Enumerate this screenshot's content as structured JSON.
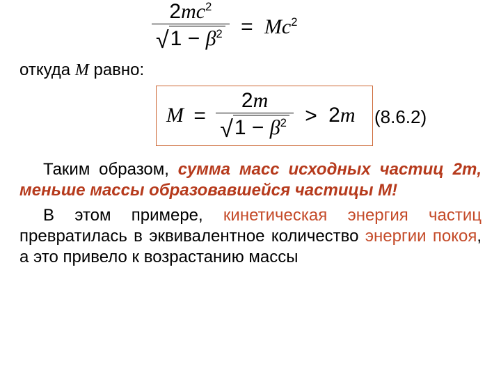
{
  "eq1": {
    "numerator_coeff": "2",
    "numerator_var": "mc",
    "numerator_exp": "2",
    "den_left": "1",
    "den_minus": "−",
    "den_var": "β",
    "den_exp": "2",
    "equals": "=",
    "rhs_var": "Mc",
    "rhs_exp": "2"
  },
  "line_text": {
    "pre": "откуда ",
    "M": "М",
    "post": " равно:"
  },
  "eq2": {
    "lhs": "M",
    "equals": "=",
    "num_coeff": "2",
    "num_var": "m",
    "den_left": "1",
    "den_minus": "−",
    "den_var": "β",
    "den_exp": "2",
    "gt": ">",
    "rhs_coeff": "2",
    "rhs_var": "m"
  },
  "eq_ref": "(8.6.2)",
  "para1": {
    "lead": "Таким образом, ",
    "highlight": "сумма масс исходных частиц 2m, меньше массы образовавшейся частицы M!"
  },
  "para2": {
    "a": "В этом примере, ",
    "b": "кинетическая энергия частиц",
    "c": " превратилась в эквивалентное количество ",
    "d": "энергии покоя",
    "e": ", а это привело к возрастанию массы"
  },
  "colors": {
    "box_border": "#cc6633",
    "bold_red": "#b63a1c",
    "red": "#c44a28",
    "text": "#000000",
    "bg": "#ffffff"
  }
}
